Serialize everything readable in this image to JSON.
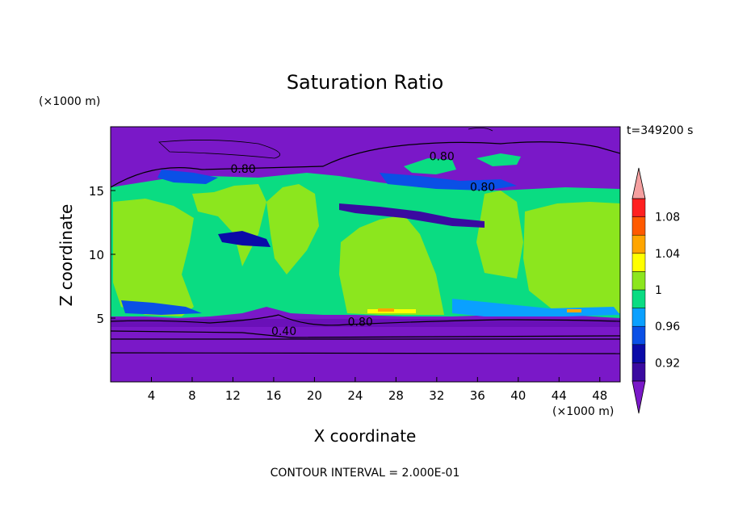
{
  "chart_data": {
    "type": "heatmap",
    "title": "Saturation Ratio",
    "xlabel": "X coordinate",
    "ylabel": "Z coordinate",
    "x_unit": "(×1000 m)",
    "y_unit": "(×1000 m)",
    "time_label": "t=349200 s",
    "footer": "CONTOUR INTERVAL = 2.000E-01",
    "xlim": [
      0,
      50
    ],
    "ylim": [
      0,
      20
    ],
    "x_ticks": [
      4,
      8,
      12,
      16,
      20,
      24,
      28,
      32,
      36,
      40,
      44,
      48
    ],
    "y_ticks": [
      5,
      10,
      15
    ],
    "contour_labels": [
      {
        "text": "0.80",
        "x": 13,
        "y": 16.7
      },
      {
        "text": "0.80",
        "x": 32.5,
        "y": 17.7
      },
      {
        "text": "0.80",
        "x": 36.5,
        "y": 15.3
      },
      {
        "text": "0.40",
        "x": 17,
        "y": 4
      },
      {
        "text": "0.80",
        "x": 24.5,
        "y": 4.7
      }
    ],
    "colorbar": {
      "levels": [
        0.9,
        0.92,
        0.94,
        0.96,
        0.98,
        1.0,
        1.02,
        1.04,
        1.06,
        1.08,
        1.1
      ],
      "tick_labels": [
        "0.92",
        "0.96",
        "1",
        "1.04",
        "1.08"
      ],
      "tick_values": [
        0.92,
        0.96,
        1.0,
        1.04,
        1.08
      ],
      "colors": [
        "#3a0aa0",
        "#0a0aa8",
        "#0a50e6",
        "#0aa0ff",
        "#0adc82",
        "#8ce61e",
        "#ffff00",
        "#ffa500",
        "#ff5a00",
        "#ff2020"
      ],
      "under_color": "#7a18c8",
      "over_color": "#f5a0a0"
    }
  }
}
